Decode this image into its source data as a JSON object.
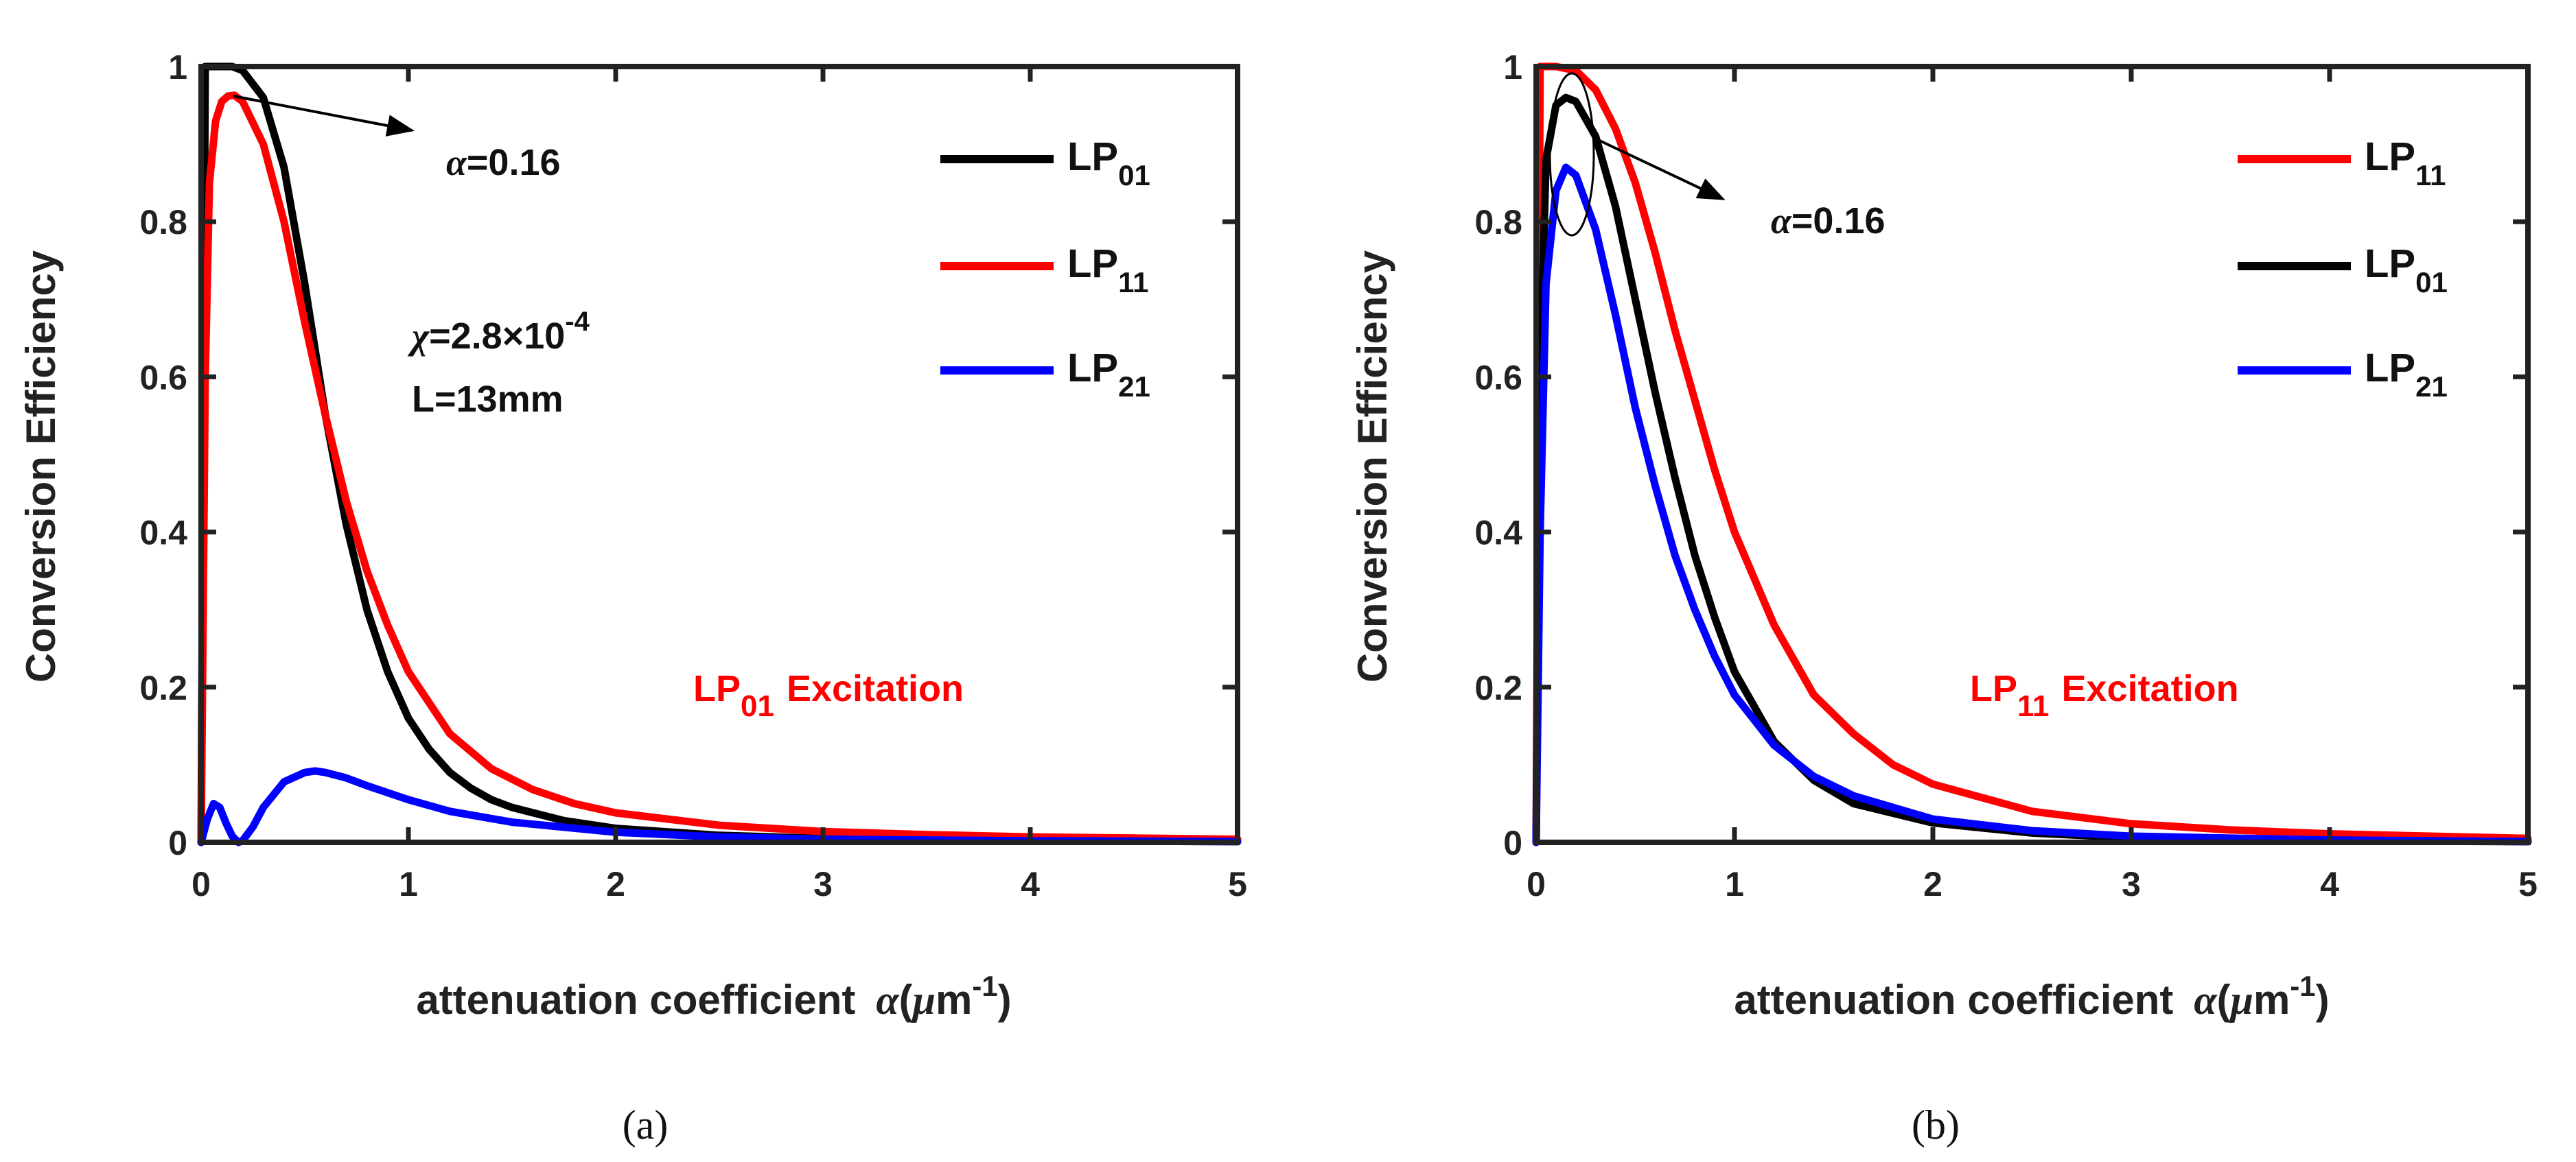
{
  "colors": {
    "black": "#000000",
    "red": "#ff0000",
    "blue": "#0000ff",
    "axis": "#222222"
  },
  "chart_data": [
    {
      "type": "line",
      "panel_label": "(a)",
      "xlabel": "attenuation coefficient",
      "xlabel_symbol": "α",
      "xlabel_unit_open": "(",
      "xlabel_unit_mu": "μ",
      "xlabel_unit_m": "m",
      "xlabel_unit_exp": "-1",
      "xlabel_unit_close": ")",
      "ylabel": "Conversion Efficiency",
      "xlim": [
        0,
        5
      ],
      "ylim": [
        0,
        1
      ],
      "xticks": [
        "0",
        "1",
        "2",
        "3",
        "4",
        "5"
      ],
      "yticks": [
        "0",
        "0.2",
        "0.4",
        "0.6",
        "0.8",
        "1"
      ],
      "annotations": {
        "alpha_marker_symbol": "α",
        "alpha_marker_value": "=0.16",
        "chi_symbol": "χ",
        "chi_value": "=2.8×10",
        "chi_exp": "-4",
        "length": "L=13mm",
        "excitation_mode": "LP",
        "excitation_sub": "01",
        "excitation_word": "Excitation"
      },
      "series": [
        {
          "name": "LP",
          "sub": "01",
          "color": "#000000",
          "x": [
            0,
            0.02,
            0.05,
            0.1,
            0.15,
            0.2,
            0.3,
            0.4,
            0.5,
            0.6,
            0.7,
            0.8,
            0.9,
            1.0,
            1.1,
            1.2,
            1.3,
            1.4,
            1.5,
            1.75,
            2.0,
            2.5,
            3.0,
            3.5,
            4.0,
            5.0
          ],
          "y": [
            0,
            1.0,
            1.0,
            1.0,
            1.0,
            0.995,
            0.96,
            0.87,
            0.72,
            0.55,
            0.41,
            0.3,
            0.22,
            0.16,
            0.12,
            0.09,
            0.07,
            0.055,
            0.045,
            0.028,
            0.018,
            0.009,
            0.005,
            0.003,
            0.002,
            0.001
          ]
        },
        {
          "name": "LP",
          "sub": "11",
          "color": "#ff0000",
          "x": [
            0,
            0.01,
            0.02,
            0.04,
            0.07,
            0.1,
            0.13,
            0.16,
            0.2,
            0.3,
            0.4,
            0.5,
            0.6,
            0.7,
            0.8,
            0.9,
            1.0,
            1.2,
            1.4,
            1.6,
            1.8,
            2.0,
            2.5,
            3.0,
            3.5,
            4.0,
            5.0
          ],
          "y": [
            0,
            0.3,
            0.6,
            0.85,
            0.93,
            0.955,
            0.962,
            0.963,
            0.955,
            0.9,
            0.8,
            0.67,
            0.55,
            0.44,
            0.35,
            0.28,
            0.22,
            0.14,
            0.095,
            0.068,
            0.05,
            0.038,
            0.022,
            0.014,
            0.01,
            0.007,
            0.004
          ]
        },
        {
          "name": "LP",
          "sub": "21",
          "color": "#0000ff",
          "x": [
            0,
            0.03,
            0.06,
            0.09,
            0.12,
            0.15,
            0.18,
            0.2,
            0.25,
            0.3,
            0.4,
            0.5,
            0.55,
            0.6,
            0.7,
            0.8,
            1.0,
            1.2,
            1.5,
            2.0,
            2.5,
            3.0,
            4.0,
            5.0
          ],
          "y": [
            0,
            0.03,
            0.05,
            0.045,
            0.025,
            0.008,
            0.0,
            0.002,
            0.02,
            0.045,
            0.078,
            0.09,
            0.092,
            0.09,
            0.083,
            0.073,
            0.055,
            0.04,
            0.026,
            0.013,
            0.007,
            0.004,
            0.002,
            0.001
          ]
        }
      ]
    },
    {
      "type": "line",
      "panel_label": "(b)",
      "xlabel": "attenuation coefficient",
      "xlabel_symbol": "α",
      "xlabel_unit_open": "(",
      "xlabel_unit_mu": "μ",
      "xlabel_unit_m": "m",
      "xlabel_unit_exp": "-1",
      "xlabel_unit_close": ")",
      "ylabel": "Conversion Efficiency",
      "xlim": [
        0,
        5
      ],
      "ylim": [
        0,
        1
      ],
      "xticks": [
        "0",
        "1",
        "2",
        "3",
        "4",
        "5"
      ],
      "yticks": [
        "0",
        "0.2",
        "0.4",
        "0.6",
        "0.8",
        "1"
      ],
      "annotations": {
        "alpha_marker_symbol": "α",
        "alpha_marker_value": "=0.16",
        "excitation_mode": "LP",
        "excitation_sub": "11",
        "excitation_word": "Excitation"
      },
      "series": [
        {
          "name": "LP",
          "sub": "11",
          "color": "#ff0000",
          "x": [
            0,
            0.02,
            0.05,
            0.1,
            0.2,
            0.3,
            0.4,
            0.5,
            0.6,
            0.7,
            0.8,
            0.9,
            1.0,
            1.2,
            1.4,
            1.6,
            1.8,
            2.0,
            2.5,
            3.0,
            3.5,
            4.0,
            5.0
          ],
          "y": [
            0,
            1.0,
            1.0,
            1.0,
            0.995,
            0.97,
            0.92,
            0.85,
            0.76,
            0.66,
            0.57,
            0.48,
            0.4,
            0.28,
            0.19,
            0.14,
            0.1,
            0.075,
            0.04,
            0.024,
            0.016,
            0.011,
            0.005
          ]
        },
        {
          "name": "LP",
          "sub": "01",
          "color": "#000000",
          "x": [
            0,
            0.02,
            0.05,
            0.1,
            0.15,
            0.2,
            0.3,
            0.4,
            0.5,
            0.6,
            0.7,
            0.8,
            0.9,
            1.0,
            1.2,
            1.4,
            1.6,
            2.0,
            2.5,
            3.0,
            4.0,
            5.0
          ],
          "y": [
            0,
            0.6,
            0.88,
            0.95,
            0.96,
            0.955,
            0.91,
            0.82,
            0.7,
            0.58,
            0.47,
            0.37,
            0.29,
            0.22,
            0.13,
            0.08,
            0.05,
            0.025,
            0.012,
            0.006,
            0.002,
            0.001
          ]
        },
        {
          "name": "LP",
          "sub": "21",
          "color": "#0000ff",
          "x": [
            0,
            0.02,
            0.05,
            0.1,
            0.15,
            0.2,
            0.3,
            0.4,
            0.5,
            0.6,
            0.7,
            0.8,
            0.9,
            1.0,
            1.2,
            1.4,
            1.6,
            2.0,
            2.5,
            3.0,
            4.0,
            5.0
          ],
          "y": [
            0,
            0.4,
            0.72,
            0.84,
            0.87,
            0.86,
            0.79,
            0.68,
            0.56,
            0.46,
            0.37,
            0.3,
            0.24,
            0.19,
            0.125,
            0.085,
            0.06,
            0.03,
            0.015,
            0.008,
            0.003,
            0.001
          ]
        }
      ]
    }
  ]
}
